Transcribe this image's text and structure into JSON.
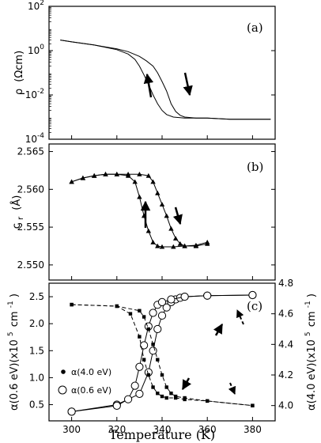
{
  "chart_data": [
    {
      "type": "line",
      "panel_label": "(a)",
      "ylabel_symbol": "ρ",
      "ylabel_unit": "(Ωcm)",
      "yscale": "log",
      "ylim": [
        0.0001,
        100
      ],
      "xlim": [
        290,
        390
      ],
      "yticks": [
        {
          "base": "10",
          "exp": "-4",
          "value": 0.0001
        },
        {
          "base": "10",
          "exp": "-2",
          "value": 0.01
        },
        {
          "base": "10",
          "exp": "0",
          "value": 1
        },
        {
          "base": "10",
          "exp": "2",
          "value": 100
        }
      ],
      "series": [
        {
          "direction": "heating",
          "x": [
            295,
            300,
            310,
            320,
            325,
            330,
            333,
            336,
            338,
            340,
            342,
            344,
            346,
            348,
            350,
            355,
            360,
            370,
            380,
            388
          ],
          "y": [
            3.0,
            2.5,
            1.8,
            1.2,
            0.9,
            0.55,
            0.35,
            0.2,
            0.1,
            0.04,
            0.015,
            0.004,
            0.0018,
            0.0012,
            0.001,
            0.0009,
            0.0009,
            0.0008,
            0.0008,
            0.0008
          ]
        },
        {
          "direction": "cooling",
          "x": [
            295,
            300,
            310,
            320,
            325,
            328,
            330,
            332,
            334,
            336,
            338,
            340,
            342,
            345,
            350,
            360,
            370,
            380,
            388
          ],
          "y": [
            3.0,
            2.5,
            1.8,
            1.1,
            0.7,
            0.4,
            0.2,
            0.08,
            0.03,
            0.01,
            0.004,
            0.002,
            0.0013,
            0.001,
            0.0009,
            0.0009,
            0.0008,
            0.0008,
            0.0008
          ]
        }
      ]
    },
    {
      "type": "line",
      "panel_label": "(b)",
      "ylabel_symbol": "c",
      "ylabel_sub": "r",
      "ylabel_unit": "(Å)",
      "ylim": [
        2.548,
        2.566
      ],
      "xlim": [
        290,
        390
      ],
      "yticks": [
        "2.565",
        "2.560",
        "2.555",
        "2.550"
      ],
      "series": [
        {
          "direction": "heating",
          "x": [
            300,
            305,
            310,
            315,
            320,
            325,
            330,
            334,
            336,
            338,
            340,
            342,
            344,
            346,
            348,
            350,
            355,
            360
          ],
          "y": [
            2.561,
            2.5615,
            2.5618,
            2.562,
            2.562,
            2.562,
            2.562,
            2.5618,
            2.561,
            2.5595,
            2.558,
            2.5565,
            2.5548,
            2.5535,
            2.5528,
            2.5525,
            2.5525,
            2.5528
          ]
        },
        {
          "direction": "cooling",
          "x": [
            300,
            305,
            310,
            315,
            320,
            325,
            328,
            330,
            332,
            334,
            336,
            338,
            340,
            345,
            350,
            355,
            360
          ],
          "y": [
            2.561,
            2.5615,
            2.5618,
            2.562,
            2.562,
            2.5618,
            2.561,
            2.559,
            2.5565,
            2.5545,
            2.553,
            2.5525,
            2.5524,
            2.5524,
            2.5525,
            2.5526,
            2.553
          ]
        }
      ]
    },
    {
      "type": "line",
      "panel_label": "(c)",
      "xlabel": "Temperature (K)",
      "ylabel_left": "α(0.6 eV)(x10",
      "ylabel_left_exp": "5",
      "ylabel_left_unit": "cm",
      "ylabel_left_unit_exp": "-1",
      "ylabel_right": "α(4.0 eV)(x10",
      "ylabel_right_exp": "5",
      "ylabel_right_unit": "cm",
      "ylabel_right_unit_exp": "-1",
      "xlim": [
        290,
        390
      ],
      "ylim_left": [
        0.2,
        2.75
      ],
      "ylim_right": [
        3.9,
        4.8
      ],
      "xticks": [
        "300",
        "320",
        "340",
        "360",
        "380"
      ],
      "yticks_left": [
        "0.5",
        "1.0",
        "1.5",
        "2.0",
        "2.5"
      ],
      "yticks_right": [
        "4.0",
        "4.2",
        "4.4",
        "4.6",
        "4.8"
      ],
      "legend": [
        {
          "label": "α(4.0 eV)",
          "marker": "filled-circle"
        },
        {
          "label": "α(0.6 eV)",
          "marker": "open-circle"
        }
      ],
      "series": [
        {
          "name": "α(0.6 eV)",
          "axis": "left",
          "marker": "open-circle",
          "x": [
            300,
            320,
            330,
            334,
            336,
            338,
            340,
            342,
            344,
            346,
            348,
            350,
            360,
            380
          ],
          "y": [
            0.37,
            0.5,
            0.7,
            1.1,
            1.5,
            1.9,
            2.15,
            2.3,
            2.4,
            2.45,
            2.48,
            2.5,
            2.52,
            2.53
          ]
        },
        {
          "name": "α(0.6 eV)",
          "axis": "left",
          "marker": "open-circle",
          "x": [
            300,
            320,
            325,
            328,
            330,
            332,
            334,
            336,
            338,
            340,
            344,
            350,
            360,
            380
          ],
          "y": [
            0.37,
            0.48,
            0.6,
            0.85,
            1.2,
            1.6,
            1.95,
            2.2,
            2.35,
            2.4,
            2.45,
            2.5,
            2.52,
            2.53
          ]
        },
        {
          "name": "α(4.0 eV)",
          "axis": "right",
          "marker": "filled-circle",
          "x": [
            300,
            320,
            330,
            332,
            334,
            336,
            338,
            340,
            342,
            344,
            346,
            350,
            360,
            380
          ],
          "y": [
            4.66,
            4.65,
            4.62,
            4.58,
            4.5,
            4.4,
            4.3,
            4.2,
            4.12,
            4.08,
            4.06,
            4.05,
            4.03,
            4.0
          ]
        },
        {
          "name": "α(4.0 eV)",
          "axis": "right",
          "marker": "filled-circle",
          "x": [
            300,
            320,
            326,
            330,
            332,
            334,
            336,
            338,
            340,
            342,
            346,
            350,
            360,
            380
          ],
          "y": [
            4.66,
            4.65,
            4.6,
            4.45,
            4.3,
            4.2,
            4.12,
            4.08,
            4.06,
            4.05,
            4.05,
            4.04,
            4.03,
            4.0
          ]
        }
      ]
    }
  ]
}
